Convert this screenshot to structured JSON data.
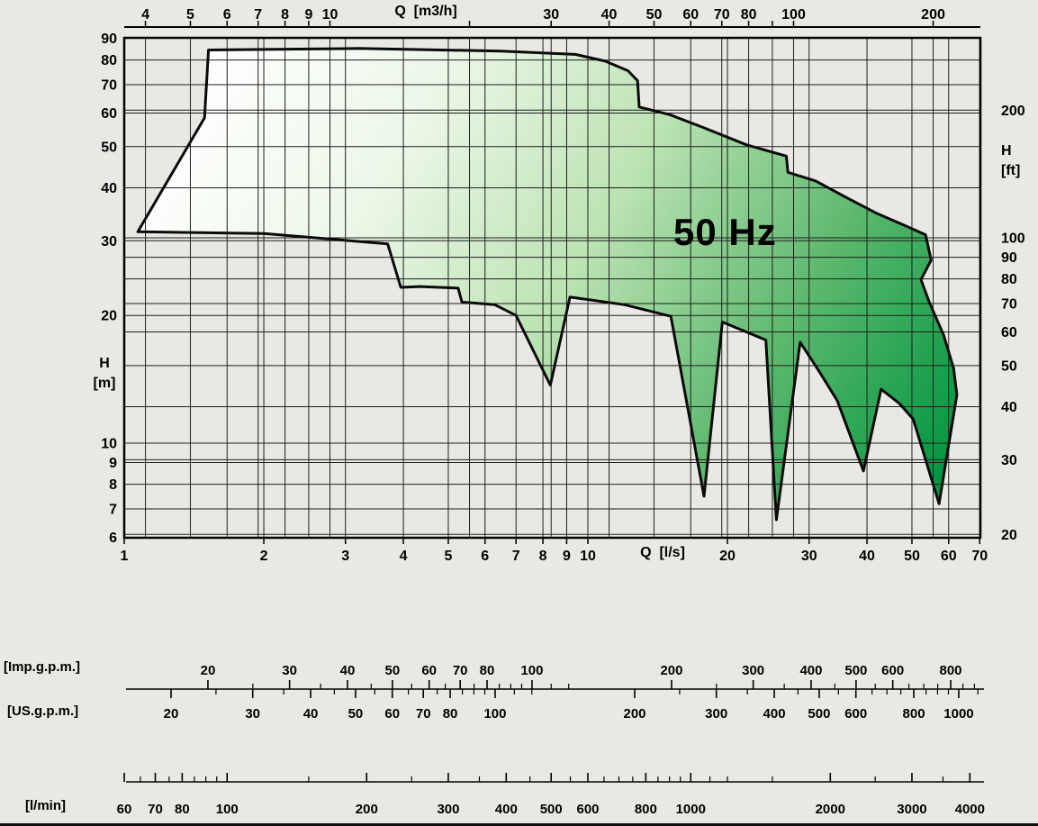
{
  "chart_data": {
    "type": "area",
    "title": "50 Hz",
    "annotation": "50 Hz",
    "axes": {
      "top": {
        "label": "Q  [m3/h]",
        "tick_labels": [
          4,
          5,
          6,
          7,
          8,
          9,
          10,
          30,
          40,
          50,
          60,
          70,
          80,
          100,
          200
        ],
        "grid_values": [
          4,
          5,
          6,
          7,
          8,
          9,
          10,
          20,
          30,
          40,
          50,
          60,
          70,
          80,
          90,
          100,
          200
        ]
      },
      "bottom": {
        "label": "Q  [l/s]",
        "tick_labels": [
          1,
          2,
          3,
          4,
          5,
          6,
          7,
          8,
          9,
          10,
          20,
          30,
          40,
          50,
          60,
          70
        ]
      },
      "left": {
        "label_lines": [
          "H",
          "[m]"
        ],
        "tick_labels": [
          90,
          80,
          70,
          60,
          50,
          40,
          30,
          20,
          10,
          9,
          8,
          7,
          6
        ]
      },
      "right": {
        "label_lines": [
          "H",
          "[ft]"
        ],
        "tick_labels": [
          200,
          100,
          90,
          80,
          70,
          60,
          50,
          40,
          30,
          20
        ]
      }
    },
    "x_range_lps": [
      1,
      70
    ],
    "y_range_m": [
      6,
      90
    ],
    "envelope_points_q_lps_h_m": [
      [
        1.07,
        31.5
      ],
      [
        1.49,
        58.5
      ],
      [
        1.52,
        84.5
      ],
      [
        3.2,
        85.2
      ],
      [
        6.5,
        84.0
      ],
      [
        9.4,
        82.5
      ],
      [
        10.9,
        79.5
      ],
      [
        12.2,
        75.5
      ],
      [
        12.8,
        71.5
      ],
      [
        12.9,
        62.0
      ],
      [
        15.0,
        59.5
      ],
      [
        17.7,
        55.5
      ],
      [
        22.0,
        50.5
      ],
      [
        26.8,
        47.5
      ],
      [
        27.0,
        43.5
      ],
      [
        31.0,
        41.5
      ],
      [
        36.0,
        38.0
      ],
      [
        42.0,
        34.8
      ],
      [
        48.5,
        32.5
      ],
      [
        53.5,
        31.0
      ],
      [
        55.0,
        27.0
      ],
      [
        52.3,
        24.3
      ],
      [
        54.5,
        21.5
      ],
      [
        58.5,
        18.0
      ],
      [
        61.5,
        15.0
      ],
      [
        62.5,
        13.0
      ],
      [
        57.2,
        7.2
      ],
      [
        50.3,
        11.4
      ],
      [
        47.0,
        12.4
      ],
      [
        42.9,
        13.4
      ],
      [
        39.3,
        8.6
      ],
      [
        34.5,
        12.6
      ],
      [
        31.5,
        14.8
      ],
      [
        28.7,
        17.3
      ],
      [
        25.5,
        6.6
      ],
      [
        24.2,
        17.5
      ],
      [
        19.5,
        19.3
      ],
      [
        17.8,
        7.5
      ],
      [
        15.1,
        19.9
      ],
      [
        12.0,
        21.2
      ],
      [
        9.15,
        22.1
      ],
      [
        8.3,
        13.7
      ],
      [
        7.0,
        20.0
      ],
      [
        6.3,
        21.2
      ],
      [
        5.35,
        21.5
      ],
      [
        5.25,
        23.2
      ],
      [
        4.35,
        23.4
      ],
      [
        3.95,
        23.3
      ],
      [
        3.7,
        29.5
      ],
      [
        2.0,
        31.2
      ]
    ],
    "rulers": [
      {
        "id": "imp",
        "label": "[Imp.g.p.m.]",
        "labeled_ticks": [
          20,
          30,
          40,
          50,
          60,
          70,
          80,
          100,
          200,
          300,
          400,
          500,
          600,
          800
        ],
        "minor_ticks": [
          25,
          35,
          45,
          55,
          65,
          75,
          85,
          90,
          95,
          110,
          120,
          250,
          350,
          450,
          550,
          650,
          700,
          750,
          850,
          900
        ]
      },
      {
        "id": "us",
        "label": "[US.g.p.m.]",
        "labeled_ticks": [
          20,
          30,
          40,
          50,
          60,
          70,
          80,
          100,
          200,
          300,
          400,
          500,
          600,
          800,
          1000
        ],
        "minor_ticks": [
          25,
          35,
          45,
          55,
          65,
          75,
          85,
          90,
          95,
          110,
          120,
          250,
          350,
          450,
          550,
          650,
          700,
          750,
          850,
          900,
          950,
          1100
        ]
      },
      {
        "id": "lmin",
        "label": "[l/min]",
        "labeled_ticks": [
          60,
          70,
          80,
          100,
          200,
          300,
          400,
          500,
          600,
          800,
          1000,
          2000,
          3000,
          4000
        ],
        "minor_ticks": [
          65,
          75,
          85,
          90,
          95,
          150,
          250,
          350,
          450,
          550,
          650,
          700,
          750,
          850,
          900,
          950,
          1100,
          1200,
          1500,
          2500,
          3500
        ]
      }
    ],
    "colors": {
      "background": "#e9e8e4",
      "grid": "#1e1e1e",
      "outline": "#0a0a0a",
      "gradient_stops": [
        [
          "0",
          "#ffffff"
        ],
        [
          "0.25",
          "#ecf7e8"
        ],
        [
          "0.5",
          "#bce3b3"
        ],
        [
          "0.75",
          "#5cb86d"
        ],
        [
          "1",
          "#009540"
        ]
      ]
    }
  }
}
